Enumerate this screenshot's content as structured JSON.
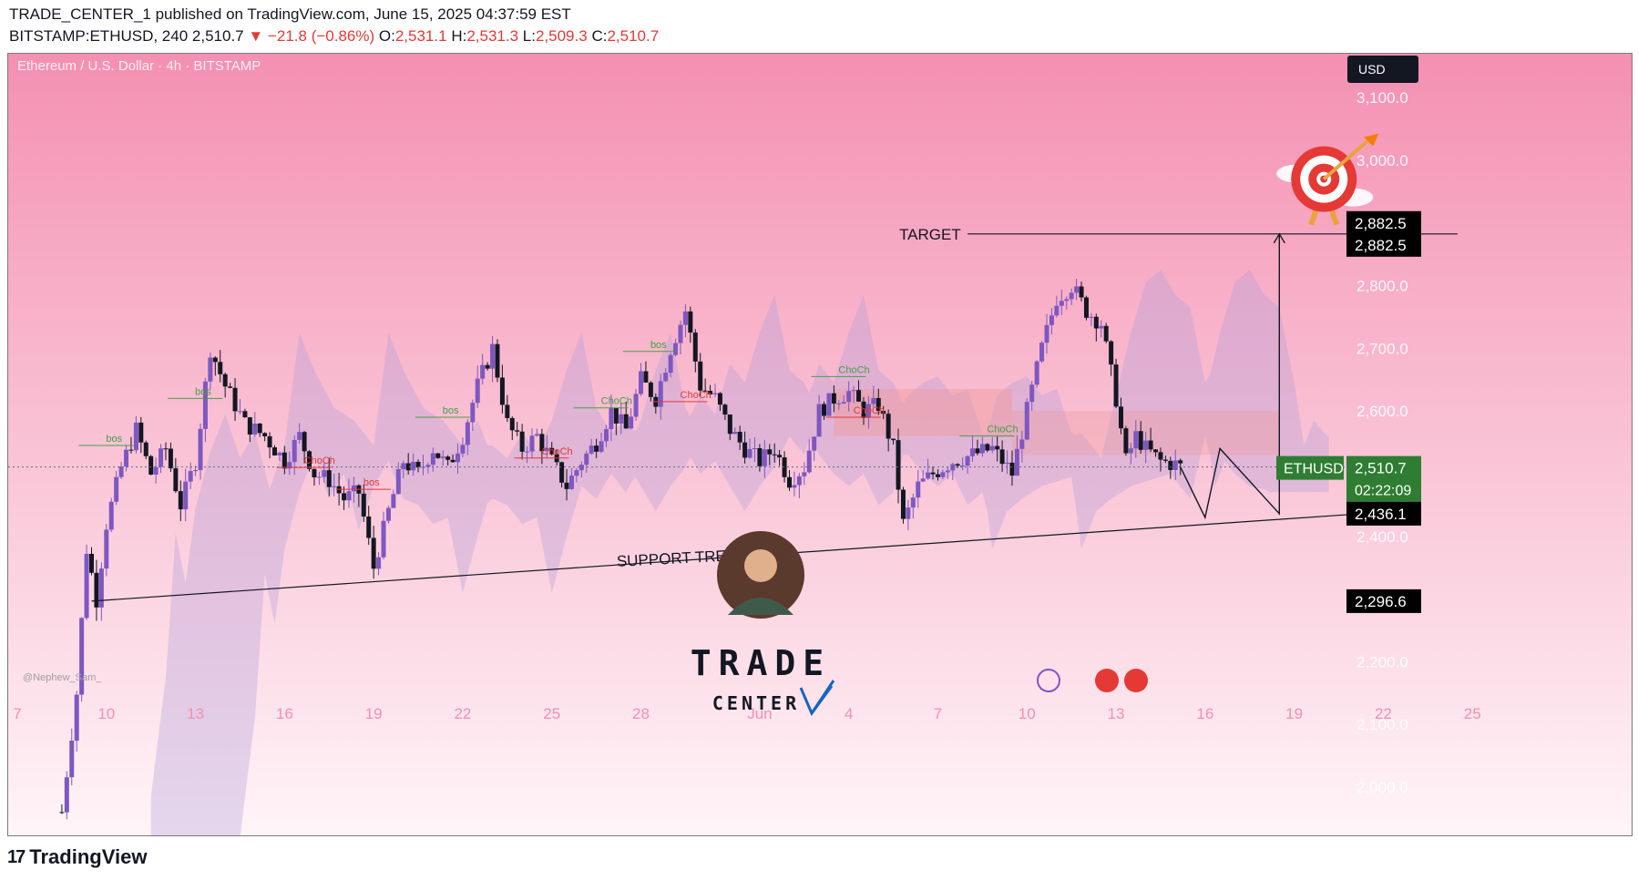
{
  "header": {
    "published": "TRADE_CENTER_1 published on TradingView.com, June 15, 2025 04:37:59 EST",
    "symbol": "BITSTAMP:ETHUSD, 240",
    "last": "2,510.7",
    "change_arrow": "▼",
    "change": "−21.8 (−0.86%)",
    "o_label": "O:",
    "o": "2,531.1",
    "h_label": "H:",
    "h": "2,531.3",
    "l_label": "L:",
    "l": "2,509.3",
    "c_label": "C:",
    "c": "2,510.7"
  },
  "footer": {
    "brand": "TradingView",
    "brand_icon": "tradingview-logo-icon"
  },
  "colors": {
    "bg_top": "#f490b2",
    "bg_bottom": "#fff5f8",
    "up": "#7e57c2",
    "down": "#131722",
    "cloud": "#b39ddb",
    "cloud_red": "#ef9a9a",
    "bos": "#43a047",
    "choch": "#e53935",
    "accent_green": "#2e7d32"
  },
  "chart_data": {
    "type": "candlestick",
    "title": "Ethereum / U.S. Dollar · 4h · BITSTAMP",
    "watermark": "@Nephew_Sam_",
    "currency": "USD",
    "ylim": [
      1920,
      3170
    ],
    "y_ticks": [
      3100,
      3000,
      2800,
      2700,
      2600,
      2400,
      2200,
      2100,
      2000
    ],
    "y_tick_labels": [
      "3,100.0",
      "3,000.0",
      "2,800.0",
      "2,700.0",
      "2,600.0",
      "2,400.0",
      "2,200.0",
      "2,100.0",
      "2,000.0"
    ],
    "x_axis": {
      "start": "2025-05-07",
      "end": "2025-06-28",
      "ticks": [
        {
          "date": "2025-05-07",
          "label": "7"
        },
        {
          "date": "2025-05-10",
          "label": "10"
        },
        {
          "date": "2025-05-13",
          "label": "13"
        },
        {
          "date": "2025-05-16",
          "label": "16"
        },
        {
          "date": "2025-05-19",
          "label": "19"
        },
        {
          "date": "2025-05-22",
          "label": "22"
        },
        {
          "date": "2025-05-25",
          "label": "25"
        },
        {
          "date": "2025-05-28",
          "label": "28"
        },
        {
          "date": "2025-06-01",
          "label": "Jun"
        },
        {
          "date": "2025-06-04",
          "label": "4"
        },
        {
          "date": "2025-06-07",
          "label": "7"
        },
        {
          "date": "2025-06-10",
          "label": "10"
        },
        {
          "date": "2025-06-13",
          "label": "13"
        },
        {
          "date": "2025-06-16",
          "label": "16"
        },
        {
          "date": "2025-06-19",
          "label": "19"
        },
        {
          "date": "2025-06-22",
          "label": "22"
        },
        {
          "date": "2025-06-25",
          "label": "25"
        }
      ]
    },
    "price_path": [
      [
        "2025-05-08 12:00",
        1960
      ],
      [
        "2025-05-09 00:00",
        2150
      ],
      [
        "2025-05-09 08:00",
        2380
      ],
      [
        "2025-05-09 16:00",
        2300
      ],
      [
        "2025-05-10 00:00",
        2420
      ],
      [
        "2025-05-10 12:00",
        2510
      ],
      [
        "2025-05-11 00:00",
        2570
      ],
      [
        "2025-05-11 12:00",
        2500
      ],
      [
        "2025-05-12 00:00",
        2540
      ],
      [
        "2025-05-12 12:00",
        2450
      ],
      [
        "2025-05-13 00:00",
        2520
      ],
      [
        "2025-05-13 12:00",
        2700
      ],
      [
        "2025-05-14 00:00",
        2640
      ],
      [
        "2025-05-14 16:00",
        2580
      ],
      [
        "2025-05-15 08:00",
        2560
      ],
      [
        "2025-05-16 00:00",
        2520
      ],
      [
        "2025-05-16 12:00",
        2560
      ],
      [
        "2025-05-17 00:00",
        2500
      ],
      [
        "2025-05-17 12:00",
        2490
      ],
      [
        "2025-05-18 00:00",
        2460
      ],
      [
        "2025-05-18 12:00",
        2470
      ],
      [
        "2025-05-19 00:00",
        2350
      ],
      [
        "2025-05-19 12:00",
        2440
      ],
      [
        "2025-05-20 00:00",
        2520
      ],
      [
        "2025-05-20 12:00",
        2500
      ],
      [
        "2025-05-21 00:00",
        2540
      ],
      [
        "2025-05-21 12:00",
        2510
      ],
      [
        "2025-05-22 00:00",
        2560
      ],
      [
        "2025-05-22 12:00",
        2640
      ],
      [
        "2025-05-23 00:00",
        2700
      ],
      [
        "2025-05-23 12:00",
        2580
      ],
      [
        "2025-05-24 00:00",
        2540
      ],
      [
        "2025-05-24 12:00",
        2560
      ],
      [
        "2025-05-25 00:00",
        2520
      ],
      [
        "2025-05-25 12:00",
        2480
      ],
      [
        "2025-05-26 00:00",
        2520
      ],
      [
        "2025-05-26 12:00",
        2550
      ],
      [
        "2025-05-27 00:00",
        2600
      ],
      [
        "2025-05-27 12:00",
        2570
      ],
      [
        "2025-05-28 00:00",
        2650
      ],
      [
        "2025-05-28 12:00",
        2620
      ],
      [
        "2025-05-29 00:00",
        2700
      ],
      [
        "2025-05-29 12:00",
        2760
      ],
      [
        "2025-05-30 00:00",
        2640
      ],
      [
        "2025-05-30 12:00",
        2620
      ],
      [
        "2025-05-31 00:00",
        2570
      ],
      [
        "2025-05-31 12:00",
        2540
      ],
      [
        "2025-06-01 00:00",
        2520
      ],
      [
        "2025-06-01 12:00",
        2540
      ],
      [
        "2025-06-02 00:00",
        2490
      ],
      [
        "2025-06-02 12:00",
        2510
      ],
      [
        "2025-06-03 00:00",
        2600
      ],
      [
        "2025-06-03 12:00",
        2620
      ],
      [
        "2025-06-04 00:00",
        2630
      ],
      [
        "2025-06-04 12:00",
        2600
      ],
      [
        "2025-06-05 00:00",
        2610
      ],
      [
        "2025-06-05 12:00",
        2540
      ],
      [
        "2025-06-05 20:00",
        2420
      ],
      [
        "2025-06-06 08:00",
        2480
      ],
      [
        "2025-06-06 20:00",
        2500
      ],
      [
        "2025-06-07 12:00",
        2520
      ],
      [
        "2025-06-08 04:00",
        2530
      ],
      [
        "2025-06-08 20:00",
        2540
      ],
      [
        "2025-06-09 12:00",
        2500
      ],
      [
        "2025-06-10 00:00",
        2600
      ],
      [
        "2025-06-10 12:00",
        2700
      ],
      [
        "2025-06-11 00:00",
        2780
      ],
      [
        "2025-06-11 12:00",
        2800
      ],
      [
        "2025-06-12 00:00",
        2760
      ],
      [
        "2025-06-12 12:00",
        2740
      ],
      [
        "2025-06-13 00:00",
        2620
      ],
      [
        "2025-06-13 08:00",
        2520
      ],
      [
        "2025-06-13 16:00",
        2560
      ],
      [
        "2025-06-14 00:00",
        2540
      ],
      [
        "2025-06-14 12:00",
        2520
      ],
      [
        "2025-06-15 00:00",
        2515
      ],
      [
        "2025-06-15 04:00",
        2510.7
      ]
    ],
    "ichimoku_cloud_label": "",
    "annotations": {
      "target": {
        "label": "TARGET",
        "price": 2882.5,
        "from": "2025-06-08 00:00",
        "to": "2025-06-24 12:00"
      },
      "support": {
        "label": "SUPPORT TRENDLINE",
        "from": [
          "2025-05-09 12:00",
          2296.6
        ],
        "to": [
          "2025-06-21 06:00",
          2436.1
        ]
      },
      "projection": [
        [
          "2025-06-15 04:00",
          2510.7
        ],
        [
          "2025-06-16 00:00",
          2430
        ],
        [
          "2025-06-16 12:00",
          2540
        ],
        [
          "2025-06-18 12:00",
          2436.1
        ],
        [
          "2025-06-18 12:00",
          2882.5
        ]
      ],
      "structure_labels": [
        {
          "text": "bos",
          "type": "bos",
          "date": "2025-05-09 20:00",
          "price": 2545
        },
        {
          "text": "bos",
          "type": "bos",
          "date": "2025-05-12 20:00",
          "price": 2620
        },
        {
          "text": "bos",
          "type": "bos",
          "date": "2025-05-21 04:00",
          "price": 2590
        },
        {
          "text": "bos",
          "type": "bos",
          "date": "2025-05-28 04:00",
          "price": 2695
        },
        {
          "text": "bos",
          "type": "choch",
          "date": "2025-05-18 12:00",
          "price": 2475
        },
        {
          "text": "ChoCh",
          "type": "choch",
          "date": "2025-05-16 12:00",
          "price": 2510
        },
        {
          "text": "ChoCh",
          "type": "choch",
          "date": "2025-05-24 12:00",
          "price": 2525
        },
        {
          "text": "ChoCh",
          "type": "bos",
          "date": "2025-05-26 12:00",
          "price": 2605
        },
        {
          "text": "ChoCh",
          "type": "choch",
          "date": "2025-05-29 04:00",
          "price": 2615
        },
        {
          "text": "ChoCh",
          "type": "bos",
          "date": "2025-06-03 12:00",
          "price": 2655
        },
        {
          "text": "ChoCh",
          "type": "choch",
          "date": "2025-06-04 00:00",
          "price": 2590
        },
        {
          "text": "ChoCh",
          "type": "bos",
          "date": "2025-06-08 12:00",
          "price": 2560
        }
      ]
    },
    "price_labels": [
      {
        "value": "2,882.5",
        "price": 2882.5,
        "style": "dark",
        "offset": -12
      },
      {
        "value": "2,882.5",
        "price": 2882.5,
        "style": "dark",
        "offset": 12
      },
      {
        "value": "2,510.7",
        "sub": "02:22:09",
        "price": 2510.7,
        "style": "green",
        "ticker": "ETHUSD"
      },
      {
        "value": "2,436.1",
        "price": 2436.1,
        "style": "dark"
      },
      {
        "value": "2,296.6",
        "price": 2296.6,
        "style": "dark"
      }
    ],
    "brand_overlay": {
      "line1": "TRADE",
      "line2": "CENTER"
    }
  }
}
